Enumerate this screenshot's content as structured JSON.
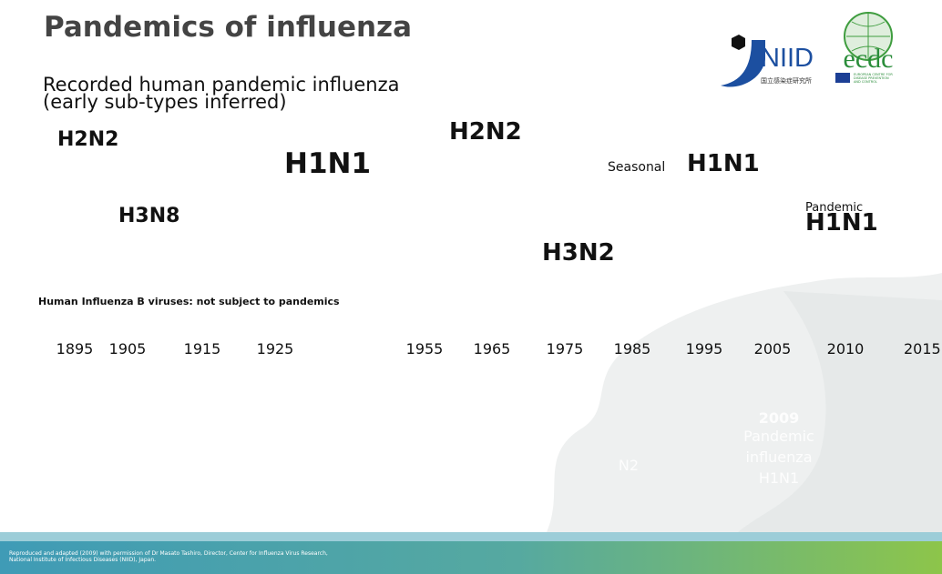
{
  "title": "Pandemics of influenza",
  "subtitle": [
    "Recorded human pandemic influenza",
    "(early sub-types inferred)"
  ],
  "labels": [
    {
      "text": "H2N2"
    },
    {
      "text": "H1N1"
    },
    {
      "text": "H3N8"
    },
    {
      "text": "H2N2"
    },
    {
      "prefix": "Seasonal",
      "text": "H1N1"
    },
    {
      "text": "H3N2"
    },
    {
      "prefix": "Pandemic",
      "text": "H1N1"
    }
  ],
  "note": "Human Influenza B viruses: not subject to pandemics",
  "years": [
    1895,
    1905,
    1915,
    1925,
    1955,
    1965,
    1975,
    1985,
    1995,
    2005,
    2010,
    2015
  ],
  "map_text": [
    "2009",
    "Pandemic",
    "influenza",
    "H1N1",
    "N2"
  ],
  "logos": {
    "niid": "NIID",
    "niid_sub": "国立感染症研究所",
    "ecdc": "ecdc",
    "ecdc_sub": [
      "EUROPEAN CENTRE FOR",
      "DISEASE PREVENTION",
      "AND CONTROL"
    ]
  },
  "footer": [
    "Reproduced and adapted (2009) with permission of Dr Masato Tashiro, Director, Center for Influenza Virus Research,",
    "National Institute of Infectious Diseases (NIID), Japan."
  ]
}
